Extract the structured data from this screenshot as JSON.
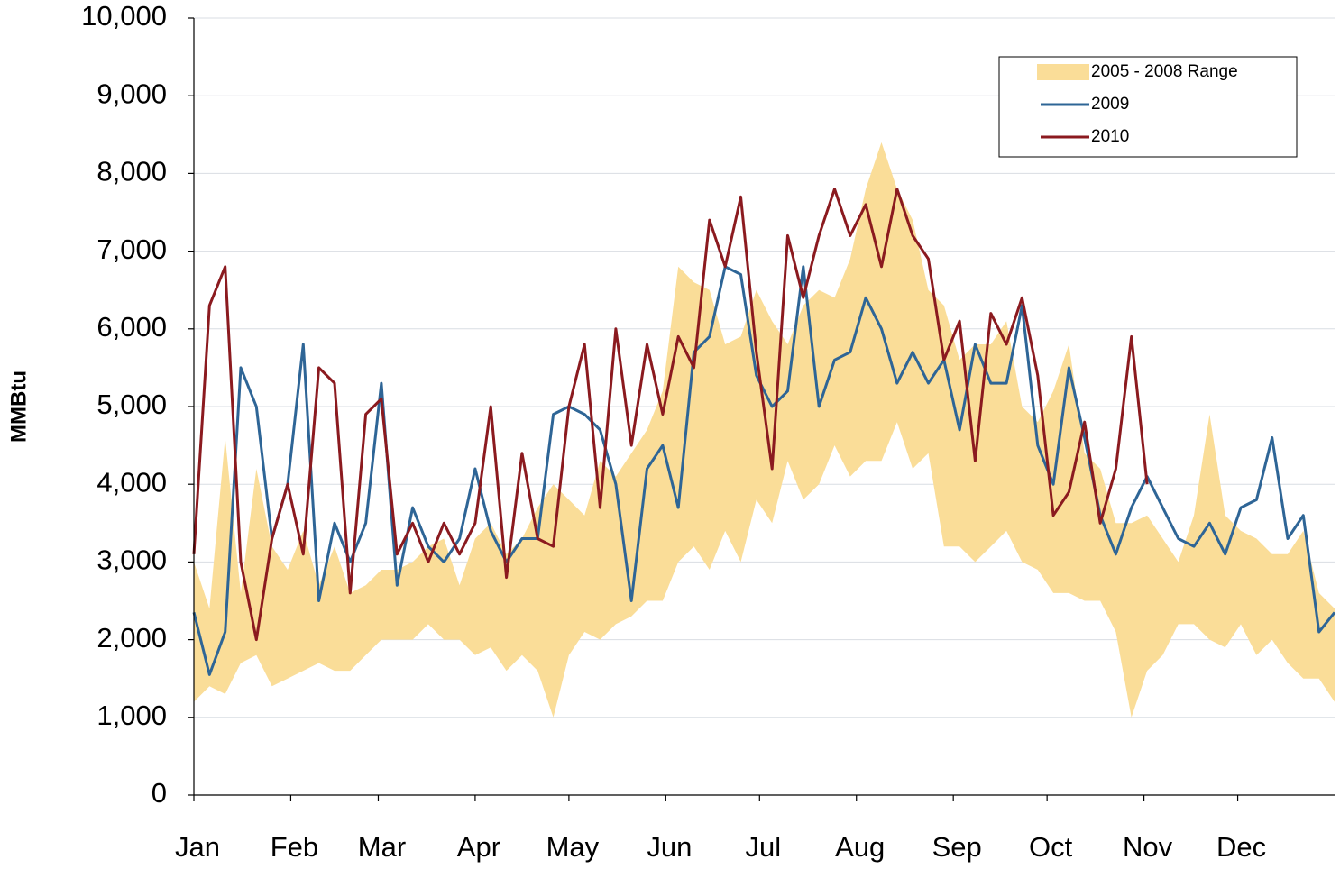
{
  "chart_data": {
    "type": "line",
    "y_label": "MMBtu",
    "x": [
      1,
      6,
      11,
      16,
      21,
      26,
      31,
      36,
      41,
      46,
      51,
      56,
      61,
      66,
      71,
      76,
      81,
      86,
      91,
      96,
      101,
      106,
      111,
      116,
      121,
      126,
      131,
      136,
      141,
      146,
      151,
      156,
      161,
      166,
      171,
      176,
      181,
      186,
      191,
      196,
      201,
      206,
      211,
      216,
      221,
      226,
      231,
      236,
      241,
      246,
      251,
      256,
      261,
      266,
      271,
      276,
      281,
      286,
      291,
      296,
      301,
      306,
      311,
      316,
      321,
      326,
      331,
      336,
      341,
      346,
      351,
      356,
      361,
      366
    ],
    "xlim": [
      1,
      366
    ],
    "xticks": [
      {
        "value": 1,
        "label": "Jan"
      },
      {
        "value": 32,
        "label": "Feb"
      },
      {
        "value": 60,
        "label": "Mar"
      },
      {
        "value": 91,
        "label": "Apr"
      },
      {
        "value": 121,
        "label": "May"
      },
      {
        "value": 152,
        "label": "Jun"
      },
      {
        "value": 182,
        "label": "Jul"
      },
      {
        "value": 213,
        "label": "Aug"
      },
      {
        "value": 244,
        "label": "Sep"
      },
      {
        "value": 274,
        "label": "Oct"
      },
      {
        "value": 305,
        "label": "Nov"
      },
      {
        "value": 335,
        "label": "Dec"
      }
    ],
    "ylim": [
      0,
      10000
    ],
    "yticks": [
      0,
      {
        "value": 1000,
        "label": "1,000"
      },
      {
        "value": 2000,
        "label": "2,000"
      },
      {
        "value": 3000,
        "label": "3,000"
      },
      {
        "value": 4000,
        "label": "4,000"
      },
      {
        "value": 5000,
        "label": "5,000"
      },
      {
        "value": 6000,
        "label": "6,000"
      },
      {
        "value": 7000,
        "label": "7,000"
      },
      {
        "value": 8000,
        "label": "8,000"
      },
      {
        "value": 9000,
        "label": "9,000"
      },
      {
        "value": 10000,
        "label": "10,000"
      }
    ],
    "grid": true,
    "legend": "top-right",
    "series": [
      {
        "name": "2005 - 2008 Range",
        "color": "#fadd98",
        "low": [
          1200,
          1400,
          1300,
          1700,
          1800,
          1400,
          1500,
          1600,
          1700,
          1600,
          1600,
          1800,
          2000,
          2000,
          2000,
          2200,
          2000,
          2000,
          1800,
          1900,
          1600,
          1800,
          1600,
          1000,
          1800,
          2100,
          2000,
          2200,
          2300,
          2500,
          2500,
          3000,
          3200,
          2900,
          3400,
          3000,
          3800,
          3500,
          4300,
          3800,
          4000,
          4500,
          4100,
          4300,
          4300,
          4800,
          4200,
          4400,
          3200,
          3200,
          3000,
          3200,
          3400,
          3000,
          2900,
          2600,
          2600,
          2500,
          2500,
          2100,
          1000,
          1600,
          1800,
          2200,
          2200,
          2000,
          1900,
          2200,
          1800,
          2000,
          1700,
          1500,
          1500,
          1200
        ],
        "high": [
          3000,
          2400,
          4600,
          2600,
          4200,
          3200,
          2900,
          3400,
          2700,
          3200,
          2600,
          2700,
          2900,
          2900,
          3000,
          3200,
          3300,
          2700,
          3300,
          3500,
          3100,
          3300,
          3700,
          4000,
          3800,
          3600,
          4300,
          4100,
          4400,
          4700,
          5200,
          6800,
          6600,
          6500,
          5800,
          5900,
          6500,
          6100,
          5800,
          6300,
          6500,
          6400,
          6900,
          7800,
          8400,
          7800,
          7400,
          6500,
          6300,
          5600,
          5800,
          5800,
          6100,
          5000,
          4800,
          5200,
          5800,
          4400,
          4200,
          3500,
          3500,
          3600,
          3300,
          3000,
          3600,
          4900,
          3600,
          3400,
          3300,
          3100,
          3100,
          3400,
          2600,
          2400
        ]
      },
      {
        "name": "2009",
        "color": "#2e6596",
        "values": [
          2350,
          1550,
          2100,
          5500,
          5000,
          3300,
          4000,
          5800,
          2500,
          3500,
          3000,
          3500,
          5300,
          2700,
          3700,
          3200,
          3000,
          3300,
          4200,
          3400,
          3000,
          3300,
          3300,
          4900,
          5000,
          4900,
          4700,
          4000,
          2500,
          4200,
          4500,
          3700,
          5700,
          5900,
          6800,
          6700,
          5400,
          5000,
          5200,
          6800,
          5000,
          5600,
          5700,
          6400,
          6000,
          5300,
          5700,
          5300,
          5600,
          4700,
          5800,
          5300,
          5300,
          6300,
          4500,
          4000,
          5500,
          4600,
          3600,
          3100,
          3700,
          4100,
          3700,
          3300,
          3200,
          3500,
          3100,
          3700,
          3800,
          4600,
          3300,
          3600,
          2100,
          2350
        ]
      },
      {
        "name": "2010",
        "color": "#8b1a1f",
        "values": [
          3100,
          6300,
          6800,
          3000,
          2000,
          3300,
          4000,
          3100,
          5500,
          5300,
          2600,
          4900,
          5100,
          3100,
          3500,
          3000,
          3500,
          3100,
          3500,
          5000,
          2800,
          4400,
          3300,
          3200,
          5000,
          5800,
          3700,
          6000,
          4500,
          5800,
          4900,
          5900,
          5500,
          7400,
          6800,
          7700,
          5700,
          4200,
          7200,
          6400,
          7200,
          7800,
          7200,
          7600,
          6800,
          7800,
          7200,
          6900,
          5600,
          6100,
          4300,
          6200,
          5800,
          6400,
          5400,
          3600,
          3900,
          4800,
          3500,
          4200,
          5900,
          4000,
          null,
          null,
          null,
          null,
          null,
          null,
          null,
          null,
          null,
          null,
          null,
          null
        ]
      }
    ]
  }
}
